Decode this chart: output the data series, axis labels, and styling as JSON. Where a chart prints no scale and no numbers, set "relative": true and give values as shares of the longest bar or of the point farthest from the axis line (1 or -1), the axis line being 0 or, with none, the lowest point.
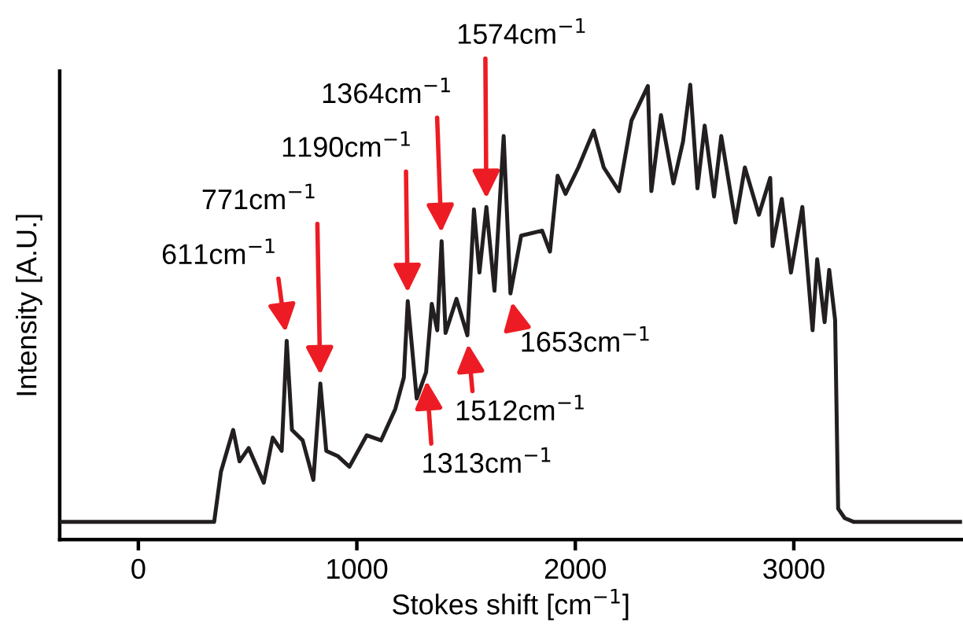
{
  "chart_data": {
    "type": "line",
    "relative": true,
    "xlabel": "Stokes shift [cm$^{−1}$]",
    "ylabel": "Intensity [A.U.]",
    "xlim": [
      -360,
      3770
    ],
    "xticks": [
      0,
      1000,
      2000,
      3000
    ],
    "x": [
      -360,
      347,
      378,
      434,
      463,
      505,
      574,
      615,
      656,
      679,
      703,
      752,
      801,
      833,
      860,
      914,
      966,
      1045,
      1111,
      1176,
      1215,
      1233,
      1253,
      1274,
      1317,
      1343,
      1368,
      1388,
      1406,
      1456,
      1506,
      1536,
      1561,
      1593,
      1630,
      1672,
      1703,
      1752,
      1848,
      1884,
      1919,
      1955,
      2014,
      2084,
      2130,
      2200,
      2257,
      2332,
      2348,
      2392,
      2449,
      2493,
      2526,
      2559,
      2592,
      2635,
      2668,
      2733,
      2776,
      2840,
      2892,
      2903,
      2945,
      2987,
      3039,
      3086,
      3107,
      3141,
      3162,
      3189,
      3203,
      3233,
      3273,
      3770
    ],
    "series": [
      {
        "color": "#231f20",
        "values": [
          0.039,
          0.039,
          0.149,
          0.241,
          0.172,
          0.201,
          0.125,
          0.224,
          0.195,
          0.437,
          0.241,
          0.218,
          0.131,
          0.343,
          0.195,
          0.183,
          0.16,
          0.229,
          0.218,
          0.287,
          0.356,
          0.524,
          0.42,
          0.31,
          0.368,
          0.518,
          0.46,
          0.656,
          0.454,
          0.529,
          0.449,
          0.726,
          0.587,
          0.731,
          0.547,
          0.887,
          0.541,
          0.668,
          0.679,
          0.633,
          0.8,
          0.76,
          0.818,
          0.899,
          0.818,
          0.766,
          0.921,
          0.997,
          0.766,
          0.933,
          0.783,
          0.875,
          1.0,
          0.772,
          0.91,
          0.754,
          0.887,
          0.697,
          0.818,
          0.714,
          0.795,
          0.645,
          0.749,
          0.587,
          0.731,
          0.46,
          0.616,
          0.478,
          0.593,
          0.483,
          0.068,
          0.047,
          0.039,
          0.039
        ]
      }
    ],
    "annotations": [
      {
        "text": "611cm$^{−1}$",
        "x": 679,
        "y": 0.437
      },
      {
        "text": "771cm$^{−1}$",
        "x": 833,
        "y": 0.343
      },
      {
        "text": "1190cm$^{−1}$",
        "x": 1233,
        "y": 0.524
      },
      {
        "text": "1364cm$^{−1}$",
        "x": 1388,
        "y": 0.656
      },
      {
        "text": "1574cm$^{−1}$",
        "x": 1593,
        "y": 0.731
      },
      {
        "text": "1313cm$^{−1}$",
        "x": 1317,
        "y": 0.368
      },
      {
        "text": "1512cm$^{−1}$",
        "x": 1506,
        "y": 0.449
      },
      {
        "text": "1653cm$^{−1}$",
        "x": 1703,
        "y": 0.541
      }
    ],
    "grid": false,
    "marker": "none",
    "line_style": "solid"
  }
}
